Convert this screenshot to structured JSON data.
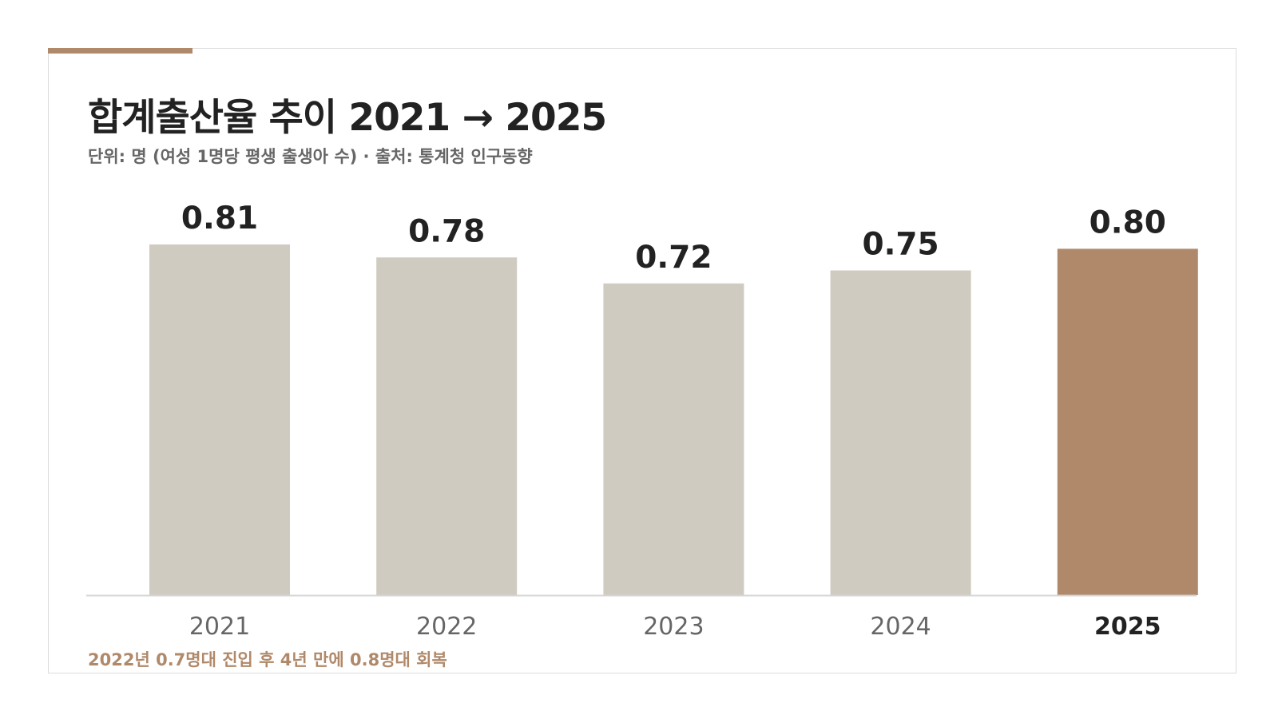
{
  "colors": {
    "accent": "#b0896a",
    "bar_default": "#d0cbc0",
    "bar_highlight": "#b0896a",
    "value_label": "#222222",
    "tick_label": "#666666",
    "tick_label_highlight": "#222222",
    "baseline": "#d6d6d6"
  },
  "header": {
    "title": "합계출산율 추이 2021 → 2025",
    "subtitle": "단위: 명 (여성 1명당 평생 출생아 수) · 출처: 통계청 인구동향"
  },
  "footer": {
    "note": "2022년 0.7명대 진입 후 4년 만에 0.8명대 회복"
  },
  "chart_data": {
    "type": "bar",
    "title": "합계출산율 추이 2021 → 2025",
    "subtitle": "단위: 명 (여성 1명당 평생 출생아 수) · 출처: 통계청 인구동향",
    "xlabel": "",
    "ylabel": "",
    "categories": [
      "2021",
      "2022",
      "2023",
      "2024",
      "2025"
    ],
    "values": [
      0.81,
      0.78,
      0.72,
      0.75,
      0.8
    ],
    "value_labels": [
      "0.81",
      "0.78",
      "0.72",
      "0.75",
      "0.80"
    ],
    "highlight": "2025",
    "ylim": [
      0,
      0.81
    ],
    "grid": false,
    "legend": "none"
  }
}
